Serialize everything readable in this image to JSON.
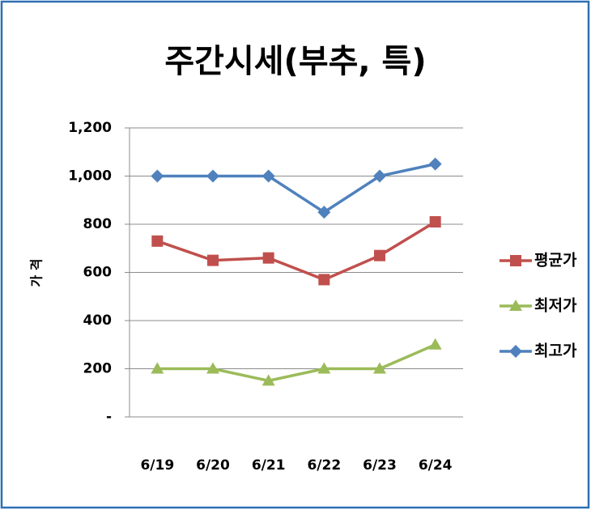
{
  "chart_data": {
    "type": "line",
    "title": "주간시세(부추, 특)",
    "y_label": "가 격",
    "categories": [
      "6/19",
      "6/20",
      "6/21",
      "6/22",
      "6/23",
      "6/24"
    ],
    "series": [
      {
        "name": "평균가",
        "color": "#c0504d",
        "marker": "square",
        "values": [
          730,
          650,
          660,
          570,
          670,
          810
        ]
      },
      {
        "name": "최저가",
        "color": "#9bbb59",
        "marker": "triangle",
        "values": [
          200,
          200,
          150,
          200,
          200,
          300
        ]
      },
      {
        "name": "최고가",
        "color": "#4f81bd",
        "marker": "diamond",
        "values": [
          1000,
          1000,
          1000,
          850,
          1000,
          1050
        ]
      }
    ],
    "ylim": [
      0,
      1200
    ],
    "yticks": [
      {
        "value": 0,
        "label": "-"
      },
      200,
      400,
      600,
      800,
      {
        "value": 1000,
        "label": "1,000"
      },
      {
        "value": 1200,
        "label": "1,200"
      }
    ],
    "grid": true,
    "legend": "right"
  }
}
